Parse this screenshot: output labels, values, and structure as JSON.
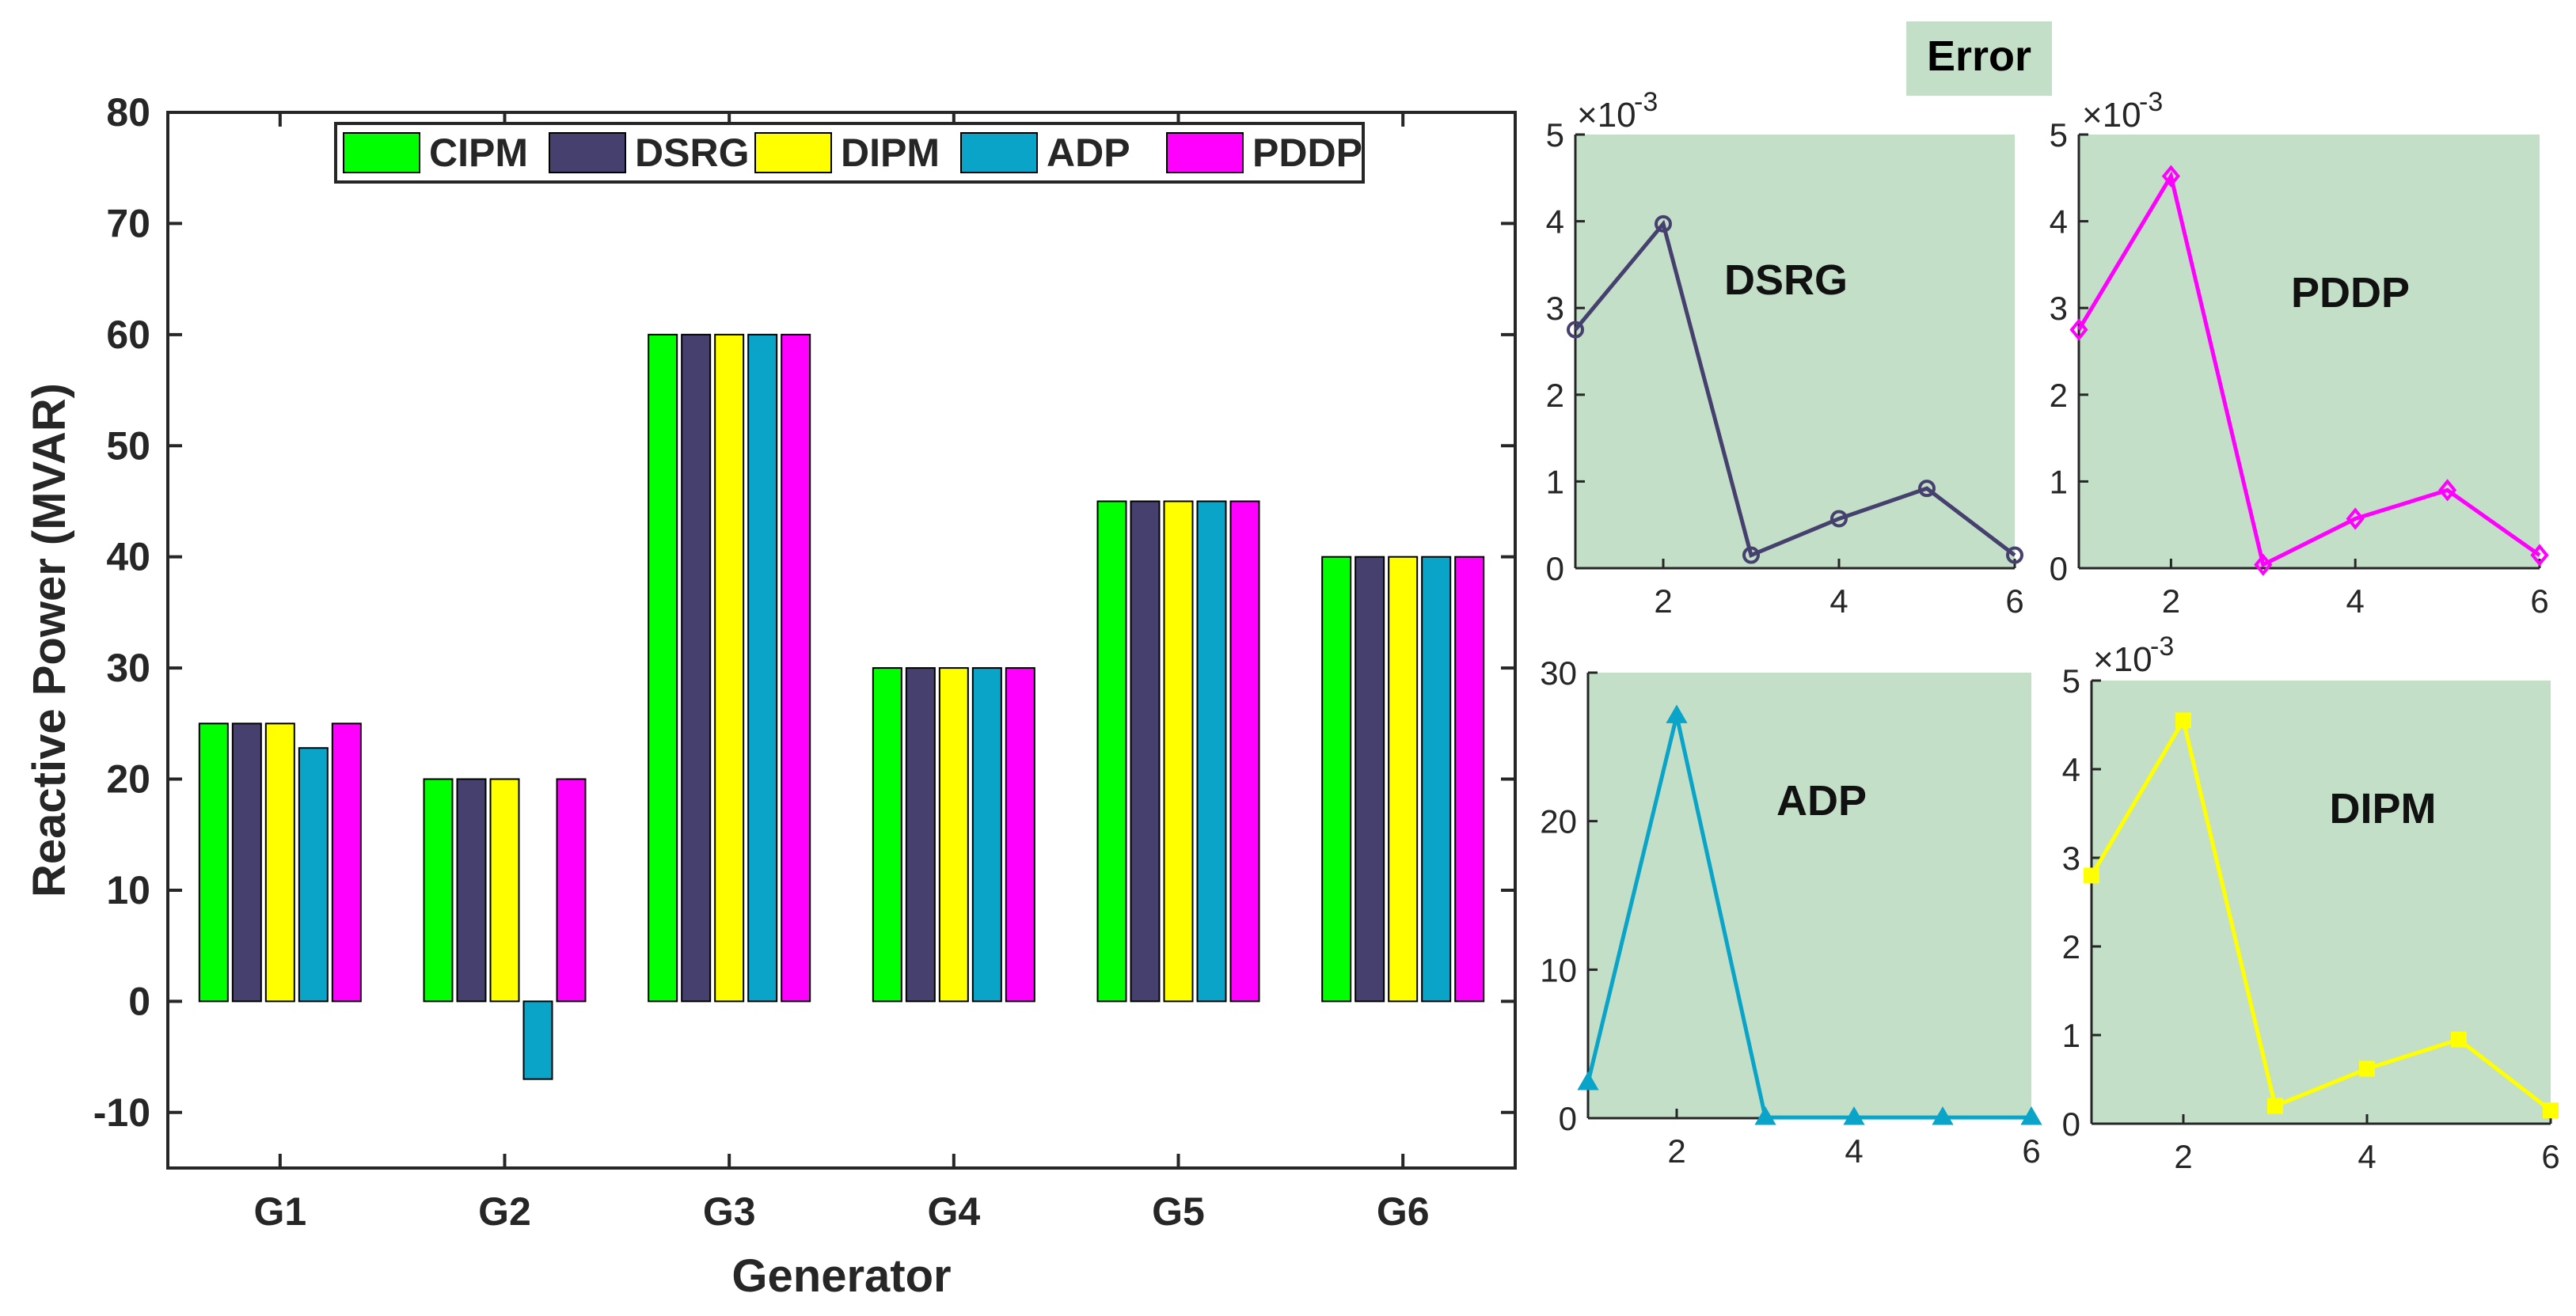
{
  "colors": {
    "CIPM": "#00ff00",
    "DSRG": "#45406e",
    "DIPM": "#ffff00",
    "ADP": "#0aa4c8",
    "PDDP": "#ff00ff",
    "panel_bg": "#c3dfc8",
    "axis": "#262626"
  },
  "chart_data": [
    {
      "id": "main",
      "type": "bar",
      "title": "",
      "xlabel": "Generator",
      "ylabel": "Reactive Power (MVAR)",
      "categories": [
        "G1",
        "G2",
        "G3",
        "G4",
        "G5",
        "G6"
      ],
      "ylim": [
        -15,
        80
      ],
      "yticks": [
        -10,
        0,
        10,
        20,
        30,
        40,
        50,
        60,
        70,
        80
      ],
      "legend_position": "top",
      "series": [
        {
          "name": "CIPM",
          "values": [
            25,
            20,
            60,
            30,
            45,
            40
          ]
        },
        {
          "name": "DSRG",
          "values": [
            25,
            20,
            60,
            30,
            45,
            40
          ]
        },
        {
          "name": "DIPM",
          "values": [
            25,
            20,
            60,
            30,
            45,
            40
          ]
        },
        {
          "name": "ADP",
          "values": [
            22.8,
            -7,
            60,
            30,
            45,
            40
          ]
        },
        {
          "name": "PDDP",
          "values": [
            25,
            20,
            60,
            30,
            45,
            40
          ]
        }
      ]
    },
    {
      "id": "dsrg",
      "type": "line",
      "title": "DSRG",
      "series_name": "DSRG",
      "marker": "circle",
      "x": [
        1,
        2,
        3,
        4,
        5,
        6
      ],
      "y": [
        2.75,
        3.97,
        0.15,
        0.57,
        0.92,
        0.15
      ],
      "xlim": [
        1,
        6
      ],
      "ylim": [
        0,
        5
      ],
      "xticks": [
        2,
        4,
        6
      ],
      "yticks": [
        0,
        1,
        2,
        3,
        4,
        5
      ],
      "multiplier": "×10",
      "exponent": "-3"
    },
    {
      "id": "pddp",
      "type": "line",
      "title": "PDDP",
      "series_name": "PDDP",
      "marker": "diamond",
      "x": [
        1,
        2,
        3,
        4,
        5,
        6
      ],
      "y": [
        2.75,
        4.52,
        0.04,
        0.57,
        0.9,
        0.15
      ],
      "xlim": [
        1,
        6
      ],
      "ylim": [
        0,
        5
      ],
      "xticks": [
        2,
        4,
        6
      ],
      "yticks": [
        0,
        1,
        2,
        3,
        4,
        5
      ],
      "multiplier": "×10",
      "exponent": "-3"
    },
    {
      "id": "adp",
      "type": "line",
      "title": "ADP",
      "series_name": "ADP",
      "marker": "triangle",
      "x": [
        1,
        2,
        3,
        4,
        5,
        6
      ],
      "y": [
        2.4,
        27.1,
        0.05,
        0.05,
        0.05,
        0.05
      ],
      "xlim": [
        1,
        6
      ],
      "ylim": [
        0,
        30
      ],
      "xticks": [
        2,
        4,
        6
      ],
      "yticks": [
        0,
        10,
        20,
        30
      ],
      "multiplier": "",
      "exponent": ""
    },
    {
      "id": "dipm",
      "type": "line",
      "title": "DIPM",
      "series_name": "DIPM",
      "marker": "square",
      "x": [
        1,
        2,
        3,
        4,
        5,
        6
      ],
      "y": [
        2.8,
        4.55,
        0.2,
        0.62,
        0.95,
        0.15
      ],
      "xlim": [
        1,
        6
      ],
      "ylim": [
        0,
        5
      ],
      "xticks": [
        2,
        4,
        6
      ],
      "yticks": [
        0,
        1,
        2,
        3,
        4,
        5
      ],
      "multiplier": "×10",
      "exponent": "-3"
    }
  ],
  "error_label": "Error"
}
